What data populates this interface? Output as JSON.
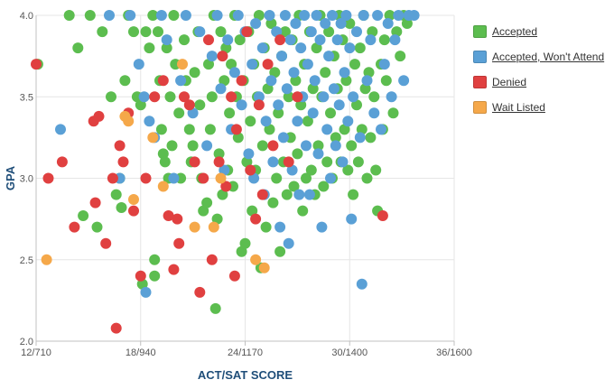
{
  "chart_data": {
    "type": "scatter",
    "title": "",
    "xlabel": "ACT/SAT SCORE",
    "ylabel": "GPA",
    "x_ticks": [
      {
        "value": 12,
        "label": "12/710"
      },
      {
        "value": 18,
        "label": "18/940"
      },
      {
        "value": 24,
        "label": "24/1170"
      },
      {
        "value": 30,
        "label": "30/1400"
      },
      {
        "value": 36,
        "label": "36/1600"
      }
    ],
    "y_ticks": [
      {
        "value": 2.0,
        "label": "2.0"
      },
      {
        "value": 2.5,
        "label": "2.5"
      },
      {
        "value": 3.0,
        "label": "3.0"
      },
      {
        "value": 3.5,
        "label": "3.5"
      },
      {
        "value": 4.0,
        "label": "4.0"
      }
    ],
    "xlim": [
      12,
      36
    ],
    "ylim": [
      2.0,
      4.0
    ],
    "grid": true,
    "legend_position": "right",
    "series": [
      {
        "name": "Accepted",
        "color": "#5cbd4f",
        "points": [
          [
            12.1,
            3.7
          ],
          [
            13.9,
            4.0
          ],
          [
            14.4,
            3.8
          ],
          [
            14.7,
            2.77
          ],
          [
            15.1,
            4.0
          ],
          [
            15.5,
            2.7
          ],
          [
            15.8,
            3.9
          ],
          [
            16.3,
            3.5
          ],
          [
            16.6,
            2.9
          ],
          [
            16.8,
            3.0
          ],
          [
            16.9,
            2.82
          ],
          [
            17.1,
            3.6
          ],
          [
            17.3,
            4.0
          ],
          [
            17.6,
            3.9
          ],
          [
            17.8,
            3.5
          ],
          [
            18.0,
            3.45
          ],
          [
            18.1,
            2.35
          ],
          [
            18.3,
            3.9
          ],
          [
            18.5,
            3.8
          ],
          [
            18.7,
            4.0
          ],
          [
            18.8,
            2.5
          ],
          [
            18.8,
            2.4
          ],
          [
            19.0,
            3.9
          ],
          [
            19.1,
            3.6
          ],
          [
            19.2,
            3.3
          ],
          [
            19.3,
            3.15
          ],
          [
            19.4,
            3.1
          ],
          [
            19.5,
            3.8
          ],
          [
            19.6,
            3.0
          ],
          [
            19.7,
            3.5
          ],
          [
            19.8,
            3.2
          ],
          [
            19.9,
            4.0
          ],
          [
            20.0,
            3.7
          ],
          [
            20.2,
            3.4
          ],
          [
            20.3,
            3.0
          ],
          [
            20.5,
            3.85
          ],
          [
            20.6,
            3.6
          ],
          [
            20.8,
            3.3
          ],
          [
            20.9,
            3.1
          ],
          [
            21.0,
            3.2
          ],
          [
            21.1,
            3.65
          ],
          [
            21.3,
            3.9
          ],
          [
            21.4,
            3.45
          ],
          [
            21.5,
            3.0
          ],
          [
            21.6,
            2.8
          ],
          [
            21.8,
            2.85
          ],
          [
            21.9,
            3.7
          ],
          [
            22.0,
            3.3
          ],
          [
            22.1,
            3.5
          ],
          [
            22.2,
            4.0
          ],
          [
            22.3,
            2.2
          ],
          [
            22.4,
            2.75
          ],
          [
            22.5,
            3.15
          ],
          [
            22.6,
            3.9
          ],
          [
            22.7,
            2.9
          ],
          [
            22.8,
            3.6
          ],
          [
            22.9,
            3.8
          ],
          [
            23.0,
            3.05
          ],
          [
            23.1,
            3.4
          ],
          [
            23.2,
            3.7
          ],
          [
            23.3,
            2.95
          ],
          [
            23.4,
            4.0
          ],
          [
            23.5,
            3.5
          ],
          [
            23.6,
            3.25
          ],
          [
            23.7,
            3.85
          ],
          [
            23.8,
            2.55
          ],
          [
            23.9,
            3.6
          ],
          [
            24.0,
            2.6
          ],
          [
            24.1,
            3.1
          ],
          [
            24.2,
            3.9
          ],
          [
            24.3,
            3.35
          ],
          [
            24.4,
            2.8
          ],
          [
            24.5,
            3.7
          ],
          [
            24.6,
            3.05
          ],
          [
            24.7,
            3.5
          ],
          [
            24.8,
            4.0
          ],
          [
            24.9,
            2.45
          ],
          [
            25.0,
            3.2
          ],
          [
            25.1,
            3.8
          ],
          [
            25.2,
            2.7
          ],
          [
            25.3,
            3.55
          ],
          [
            25.4,
            3.3
          ],
          [
            25.5,
            3.95
          ],
          [
            25.6,
            2.85
          ],
          [
            25.7,
            3.65
          ],
          [
            25.8,
            3.0
          ],
          [
            25.9,
            3.4
          ],
          [
            26.0,
            2.55
          ],
          [
            26.1,
            3.75
          ],
          [
            26.2,
            3.1
          ],
          [
            26.3,
            3.9
          ],
          [
            26.4,
            2.9
          ],
          [
            26.5,
            3.5
          ],
          [
            26.6,
            3.25
          ],
          [
            26.7,
            3.85
          ],
          [
            26.8,
            2.95
          ],
          [
            26.9,
            3.6
          ],
          [
            27.0,
            3.15
          ],
          [
            27.1,
            4.0
          ],
          [
            27.2,
            3.45
          ],
          [
            27.3,
            2.8
          ],
          [
            27.4,
            3.7
          ],
          [
            27.5,
            3.0
          ],
          [
            27.6,
            3.35
          ],
          [
            27.7,
            3.9
          ],
          [
            27.8,
            3.05
          ],
          [
            27.9,
            3.55
          ],
          [
            28.0,
            2.9
          ],
          [
            28.1,
            3.8
          ],
          [
            28.2,
            3.2
          ],
          [
            28.3,
            4.0
          ],
          [
            28.4,
            3.5
          ],
          [
            28.5,
            2.95
          ],
          [
            28.6,
            3.65
          ],
          [
            28.7,
            3.1
          ],
          [
            28.8,
            3.9
          ],
          [
            28.9,
            3.4
          ],
          [
            29.0,
            3.0
          ],
          [
            29.1,
            3.75
          ],
          [
            29.2,
            3.25
          ],
          [
            29.3,
            3.55
          ],
          [
            29.4,
            4.0
          ],
          [
            29.5,
            3.1
          ],
          [
            29.6,
            3.85
          ],
          [
            29.7,
            3.3
          ],
          [
            29.8,
            3.6
          ],
          [
            29.9,
            3.05
          ],
          [
            30.0,
            3.95
          ],
          [
            30.1,
            3.2
          ],
          [
            30.2,
            2.9
          ],
          [
            30.3,
            3.7
          ],
          [
            30.4,
            3.45
          ],
          [
            30.5,
            3.1
          ],
          [
            30.6,
            3.8
          ],
          [
            30.7,
            3.3
          ],
          [
            30.8,
            4.0
          ],
          [
            30.9,
            3.55
          ],
          [
            31.0,
            3.0
          ],
          [
            31.1,
            3.65
          ],
          [
            31.2,
            3.25
          ],
          [
            31.3,
            3.9
          ],
          [
            31.4,
            3.5
          ],
          [
            31.5,
            3.05
          ],
          [
            31.6,
            2.8
          ],
          [
            31.8,
            3.7
          ],
          [
            31.9,
            3.3
          ],
          [
            32.0,
            3.85
          ],
          [
            32.1,
            3.6
          ],
          [
            32.3,
            4.0
          ],
          [
            32.5,
            3.4
          ],
          [
            32.7,
            3.9
          ],
          [
            32.9,
            3.75
          ],
          [
            33.1,
            4.0
          ],
          [
            33.3,
            3.95
          ]
        ]
      },
      {
        "name": "Accepted, Won't Attend",
        "color": "#5aa0d6",
        "points": [
          [
            13.4,
            3.3
          ],
          [
            16.2,
            4.0
          ],
          [
            16.8,
            3.0
          ],
          [
            17.4,
            4.0
          ],
          [
            17.9,
            3.7
          ],
          [
            18.2,
            3.5
          ],
          [
            18.3,
            2.3
          ],
          [
            18.5,
            3.35
          ],
          [
            18.8,
            3.25
          ],
          [
            19.2,
            4.0
          ],
          [
            19.5,
            3.85
          ],
          [
            19.9,
            3.0
          ],
          [
            20.3,
            3.6
          ],
          [
            20.6,
            4.0
          ],
          [
            21.0,
            3.4
          ],
          [
            21.4,
            3.9
          ],
          [
            21.8,
            3.2
          ],
          [
            22.1,
            3.75
          ],
          [
            22.4,
            4.0
          ],
          [
            22.6,
            3.55
          ],
          [
            22.8,
            3.05
          ],
          [
            23.0,
            3.85
          ],
          [
            23.2,
            3.3
          ],
          [
            23.4,
            3.65
          ],
          [
            23.6,
            4.0
          ],
          [
            23.8,
            3.45
          ],
          [
            24.0,
            3.9
          ],
          [
            24.2,
            3.15
          ],
          [
            24.4,
            3.7
          ],
          [
            24.5,
            3.0
          ],
          [
            24.6,
            3.95
          ],
          [
            24.8,
            3.5
          ],
          [
            25.0,
            3.8
          ],
          [
            25.1,
            2.9
          ],
          [
            25.2,
            3.35
          ],
          [
            25.4,
            4.0
          ],
          [
            25.5,
            3.6
          ],
          [
            25.6,
            3.1
          ],
          [
            25.8,
            3.9
          ],
          [
            25.9,
            3.45
          ],
          [
            26.0,
            2.7
          ],
          [
            26.1,
            3.75
          ],
          [
            26.2,
            3.25
          ],
          [
            26.3,
            4.0
          ],
          [
            26.4,
            3.55
          ],
          [
            26.5,
            2.6
          ],
          [
            26.6,
            3.85
          ],
          [
            26.7,
            3.05
          ],
          [
            26.8,
            3.65
          ],
          [
            26.9,
            3.95
          ],
          [
            27.0,
            3.35
          ],
          [
            27.1,
            2.9
          ],
          [
            27.2,
            3.8
          ],
          [
            27.3,
            3.5
          ],
          [
            27.4,
            4.0
          ],
          [
            27.5,
            3.2
          ],
          [
            27.6,
            3.7
          ],
          [
            27.7,
            2.9
          ],
          [
            27.8,
            3.9
          ],
          [
            27.9,
            3.4
          ],
          [
            28.0,
            3.6
          ],
          [
            28.1,
            4.0
          ],
          [
            28.2,
            3.15
          ],
          [
            28.3,
            3.85
          ],
          [
            28.4,
            2.7
          ],
          [
            28.5,
            3.5
          ],
          [
            28.6,
            3.95
          ],
          [
            28.7,
            3.3
          ],
          [
            28.8,
            3.75
          ],
          [
            28.9,
            3.0
          ],
          [
            29.0,
            4.0
          ],
          [
            29.1,
            3.55
          ],
          [
            29.2,
            3.2
          ],
          [
            29.3,
            3.85
          ],
          [
            29.4,
            3.45
          ],
          [
            29.5,
            3.95
          ],
          [
            29.6,
            3.1
          ],
          [
            29.7,
            3.65
          ],
          [
            29.8,
            4.0
          ],
          [
            29.9,
            3.35
          ],
          [
            30.0,
            3.8
          ],
          [
            30.1,
            2.75
          ],
          [
            30.2,
            3.5
          ],
          [
            30.4,
            3.9
          ],
          [
            30.6,
            3.25
          ],
          [
            30.7,
            2.35
          ],
          [
            30.8,
            4.0
          ],
          [
            31.0,
            3.6
          ],
          [
            31.2,
            3.85
          ],
          [
            31.4,
            3.4
          ],
          [
            31.6,
            4.0
          ],
          [
            31.8,
            3.3
          ],
          [
            32.0,
            3.7
          ],
          [
            32.2,
            3.95
          ],
          [
            32.4,
            3.5
          ],
          [
            32.6,
            3.85
          ],
          [
            32.8,
            4.0
          ],
          [
            33.1,
            3.6
          ],
          [
            33.4,
            4.0
          ],
          [
            33.7,
            4.0
          ]
        ]
      },
      {
        "name": "Denied",
        "color": "#e04040",
        "points": [
          [
            12.0,
            3.7
          ],
          [
            12.7,
            3.0
          ],
          [
            13.5,
            3.1
          ],
          [
            14.2,
            2.7
          ],
          [
            15.3,
            3.35
          ],
          [
            15.4,
            2.85
          ],
          [
            15.6,
            3.38
          ],
          [
            16.0,
            2.6
          ],
          [
            16.4,
            3.0
          ],
          [
            16.6,
            2.08
          ],
          [
            16.8,
            3.2
          ],
          [
            17.0,
            3.1
          ],
          [
            17.3,
            3.4
          ],
          [
            17.6,
            2.8
          ],
          [
            18.0,
            2.4
          ],
          [
            18.3,
            3.0
          ],
          [
            18.8,
            3.5
          ],
          [
            19.3,
            3.6
          ],
          [
            19.6,
            2.77
          ],
          [
            19.9,
            2.44
          ],
          [
            20.1,
            2.75
          ],
          [
            20.2,
            2.6
          ],
          [
            20.5,
            3.5
          ],
          [
            20.8,
            3.45
          ],
          [
            21.1,
            3.1
          ],
          [
            21.4,
            2.3
          ],
          [
            21.6,
            3.0
          ],
          [
            21.9,
            3.85
          ],
          [
            22.1,
            2.5
          ],
          [
            22.5,
            3.1
          ],
          [
            22.7,
            3.75
          ],
          [
            22.9,
            2.95
          ],
          [
            23.2,
            3.5
          ],
          [
            23.4,
            2.4
          ],
          [
            23.5,
            3.3
          ],
          [
            23.8,
            3.6
          ],
          [
            24.1,
            3.9
          ],
          [
            24.3,
            3.05
          ],
          [
            24.6,
            2.75
          ],
          [
            24.8,
            3.45
          ],
          [
            25.0,
            2.9
          ],
          [
            25.3,
            3.7
          ],
          [
            25.6,
            3.2
          ],
          [
            26.0,
            3.85
          ],
          [
            26.5,
            3.1
          ],
          [
            27.0,
            3.5
          ],
          [
            31.9,
            2.77
          ]
        ]
      },
      {
        "name": "Wait Listed",
        "color": "#f5a84a",
        "points": [
          [
            12.6,
            2.5
          ],
          [
            17.1,
            3.38
          ],
          [
            17.3,
            3.35
          ],
          [
            17.6,
            2.87
          ],
          [
            18.7,
            3.25
          ],
          [
            19.3,
            2.95
          ],
          [
            20.4,
            3.7
          ],
          [
            21.1,
            2.7
          ],
          [
            22.2,
            2.7
          ],
          [
            22.6,
            3.0
          ],
          [
            24.6,
            2.5
          ],
          [
            25.1,
            2.45
          ]
        ]
      }
    ]
  }
}
